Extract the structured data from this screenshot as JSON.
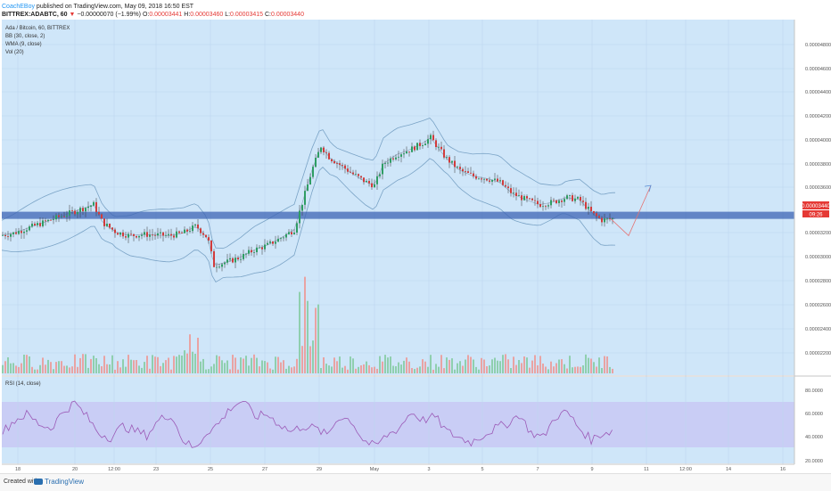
{
  "header": {
    "author": "CoachEBoy",
    "published_text": "published on TradingView.com, May 09, 2018 16:50 EST",
    "symbol": "BITTREX:ADABTC, 60",
    "change_arrow": "▼",
    "change": "−0.00000070 (−1.99%)",
    "open_label": "O:",
    "open": "0.00003441",
    "high_label": "H:",
    "high": "0.00003460",
    "low_label": "L:",
    "low": "0.00003415",
    "close_label": "C:",
    "close": "0.00003440"
  },
  "legend": [
    "Ada / Bitcoin, 60, BITTREX",
    "BB (30, close, 2)",
    "WMA (9, close)",
    "Vol (20)"
  ],
  "rsi_label": "RSI (14, close)",
  "price_badge": "0.00003440",
  "time_badge": "09:26",
  "footer": {
    "created_with": "Created with",
    "brand": "TradingView"
  },
  "colors": {
    "pane_bg": "#cfe6f9",
    "rsi_band": "#c8c8f5",
    "up": "#2e9d63",
    "down": "#d23b3b",
    "bb": "#7aa3c6",
    "zone": "#3e64b4",
    "rsi_line": "#9b59b6",
    "badge": "#e53935"
  },
  "chart_data": {
    "type": "candlestick",
    "y_ticks": [
      "0.00004800",
      "0.00004600",
      "0.00004400",
      "0.00004200",
      "0.00004000",
      "0.00003800",
      "0.00003600",
      "0.00003200",
      "0.00003000",
      "0.00002800",
      "0.00002600",
      "0.00002400",
      "0.00002200"
    ],
    "x_ticks": [
      "18",
      "20",
      "12:00",
      "23",
      "25",
      "27",
      "29",
      "May",
      "3",
      "5",
      "7",
      "9",
      "11",
      "12:00",
      "14",
      "16"
    ],
    "rsi_ticks": [
      "80.0000",
      "60.0000",
      "40.0000",
      "20.0000"
    ],
    "price_series": [
      [
        0,
        3.3
      ],
      [
        15,
        3.32
      ],
      [
        30,
        3.36
      ],
      [
        45,
        3.4
      ],
      [
        60,
        3.44
      ],
      [
        75,
        3.48
      ],
      [
        90,
        3.52
      ],
      [
        105,
        3.56
      ],
      [
        115,
        3.41
      ],
      [
        130,
        3.33
      ],
      [
        145,
        3.3
      ],
      [
        160,
        3.31
      ],
      [
        175,
        3.305
      ],
      [
        190,
        3.3
      ],
      [
        205,
        3.32
      ],
      [
        220,
        3.38
      ],
      [
        233,
        3.28
      ],
      [
        240,
        3.05
      ],
      [
        255,
        3.08
      ],
      [
        270,
        3.12
      ],
      [
        285,
        3.18
      ],
      [
        300,
        3.22
      ],
      [
        315,
        3.28
      ],
      [
        330,
        3.35
      ],
      [
        340,
        3.6
      ],
      [
        350,
        3.85
      ],
      [
        360,
        4.05
      ],
      [
        370,
        3.95
      ],
      [
        380,
        3.9
      ],
      [
        395,
        3.82
      ],
      [
        410,
        3.75
      ],
      [
        420,
        3.72
      ],
      [
        430,
        3.9
      ],
      [
        445,
        3.98
      ],
      [
        460,
        4.02
      ],
      [
        475,
        4.08
      ],
      [
        483,
        4.12
      ],
      [
        490,
        4.05
      ],
      [
        500,
        3.95
      ],
      [
        515,
        3.85
      ],
      [
        530,
        3.8
      ],
      [
        545,
        3.78
      ],
      [
        560,
        3.75
      ],
      [
        575,
        3.65
      ],
      [
        590,
        3.6
      ],
      [
        605,
        3.56
      ],
      [
        620,
        3.58
      ],
      [
        635,
        3.62
      ],
      [
        650,
        3.6
      ],
      [
        665,
        3.48
      ],
      [
        675,
        3.43
      ],
      [
        685,
        3.44
      ]
    ],
    "projection": [
      [
        685,
        3.44
      ],
      [
        705,
        3.3
      ],
      [
        730,
        3.72
      ]
    ],
    "support_zone": [
      3.44,
      3.5
    ],
    "rsi_series": [
      45,
      55,
      60,
      52,
      48,
      62,
      70,
      58,
      44,
      40,
      50,
      46,
      42,
      55,
      60,
      38,
      30,
      45,
      52,
      66,
      72,
      58,
      60,
      52,
      45,
      50,
      48,
      42,
      58,
      55,
      38,
      32,
      42,
      48,
      62,
      55,
      58,
      45,
      40,
      36,
      42,
      48,
      52,
      60,
      44,
      40,
      58,
      62,
      48,
      38,
      44,
      46
    ]
  }
}
